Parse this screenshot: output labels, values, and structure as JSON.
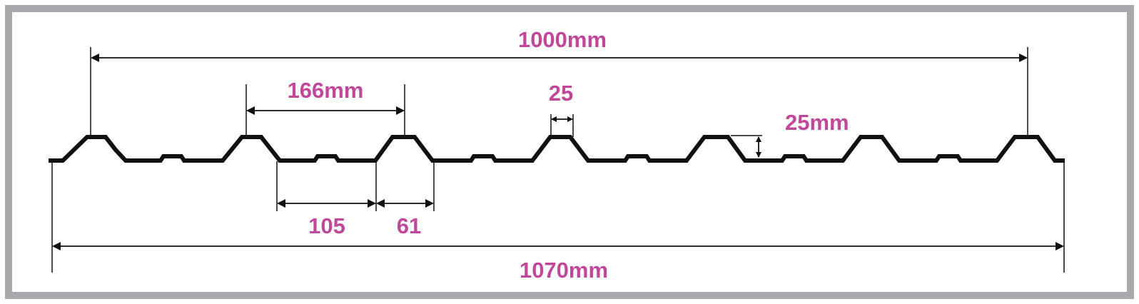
{
  "colors": {
    "frame": "#a7a9ac",
    "profile": "#111111",
    "label": "#c1479b",
    "background": "#ffffff"
  },
  "labels": {
    "effective_width": "1000mm",
    "rib_pitch": "166mm",
    "crest_width": "25",
    "rib_height": "25mm",
    "valley_width": "105",
    "rib_base": "61",
    "overall_width": "1070mm"
  }
}
